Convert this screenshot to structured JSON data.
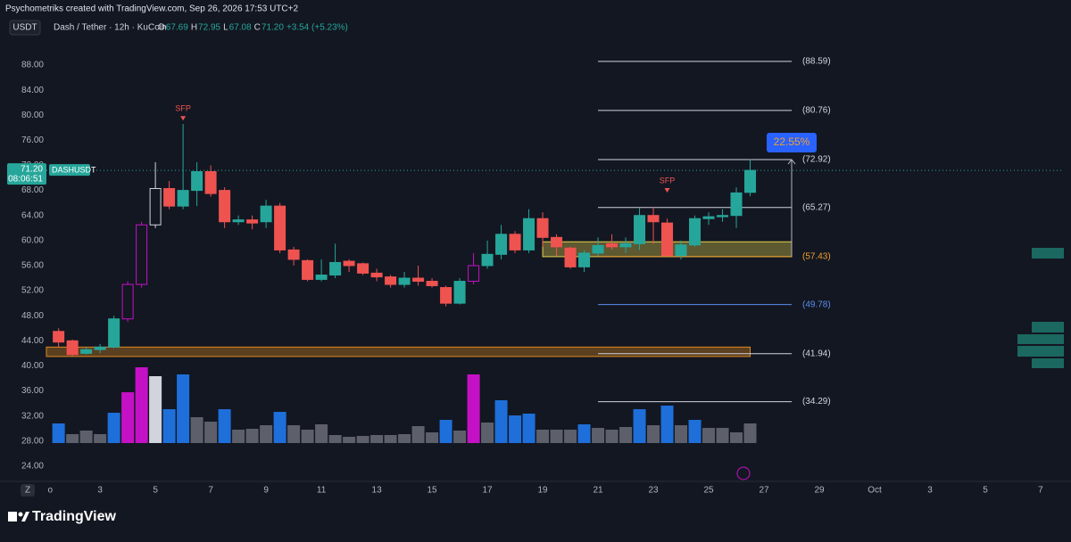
{
  "header": {
    "credit": "Psychometriks created with TradingView.com, Sep 26, 2026 17:53 UTC+2",
    "currency": "USDT",
    "symbol": "Dash / Tether · 12h · KuCoin",
    "ohlc": [
      {
        "key": "O",
        "value": "67.69"
      },
      {
        "key": "H",
        "value": "72.95"
      },
      {
        "key": "L",
        "value": "67.08"
      },
      {
        "key": "C",
        "value": "71.20"
      }
    ],
    "change": "+3.54 (+5.23%)"
  },
  "last_price": {
    "price": "71.20",
    "countdown": "08:06:51",
    "symbol": "DASHUSDT"
  },
  "footer": {
    "logo": "TradingView",
    "zoom": "Z"
  },
  "chart_data": {
    "type": "candlestick",
    "up_color": "#26a69a",
    "down_color": "#ef5350",
    "xlim": [
      1.06,
      37.84
    ],
    "ylim": [
      21.57,
      95.54
    ],
    "xticks": [
      {
        "value": 1.2,
        "label": "o"
      },
      3,
      5,
      7,
      9,
      11,
      13,
      15,
      17,
      19,
      21,
      23,
      25,
      27,
      29,
      {
        "value": 31,
        "label": "Oct"
      },
      {
        "value": 33,
        "label": "3"
      },
      {
        "value": 35,
        "label": "5"
      },
      {
        "value": 37,
        "label": "7"
      }
    ],
    "yticks": [
      {
        "value": 24,
        "label": "24.00"
      },
      {
        "value": 28,
        "label": "28.00"
      },
      {
        "value": 32,
        "label": "32.00"
      },
      {
        "value": 36,
        "label": "36.00"
      },
      {
        "value": 40,
        "label": "40.00"
      },
      {
        "value": 44,
        "label": "44.00"
      },
      {
        "value": 48,
        "label": "48.00"
      },
      {
        "value": 52,
        "label": "52.00"
      },
      {
        "value": 56,
        "label": "56.00"
      },
      {
        "value": 60,
        "label": "60.00"
      },
      {
        "value": 64,
        "label": "64.00"
      },
      {
        "value": 68,
        "label": "68.00"
      },
      {
        "value": 72,
        "label": "72.00"
      },
      {
        "value": 76,
        "label": "76.00"
      },
      {
        "value": 80,
        "label": "80.00"
      },
      {
        "value": 84,
        "label": "84.00"
      },
      {
        "value": 88,
        "label": "88.00"
      }
    ],
    "x": [
      1.5,
      2,
      2.5,
      3,
      3.5,
      4,
      4.5,
      5,
      5.5,
      6,
      6.5,
      7,
      7.5,
      8,
      8.5,
      9,
      9.5,
      10,
      10.5,
      11,
      11.5,
      12,
      12.5,
      13,
      13.5,
      14,
      14.5,
      15,
      15.5,
      16,
      16.5,
      17,
      17.5,
      18,
      18.5,
      19,
      19.5,
      20,
      20.5,
      21,
      21.5,
      22,
      22.5,
      23,
      23.5,
      24,
      24.5,
      25,
      25.5,
      26,
      26.5
    ],
    "open": [
      45.5,
      44,
      42,
      42.6,
      43,
      47.5,
      53,
      62.5,
      68.3,
      65.5,
      68,
      71,
      68,
      63,
      63.3,
      63,
      65.5,
      58.5,
      56.8,
      53.8,
      54.5,
      56.7,
      56.3,
      54.8,
      54.2,
      53,
      54,
      53.5,
      52.5,
      50,
      53.5,
      56,
      57.8,
      61,
      58.5,
      63.5,
      60.5,
      58.8,
      55.8,
      58,
      59.5,
      59,
      59.5,
      64,
      62.8,
      57.6,
      59.3,
      63.5,
      63.8,
      64,
      67.69
    ],
    "high": [
      46,
      44.2,
      43,
      43.5,
      48,
      53.5,
      63,
      72.5,
      69.5,
      78.6,
      72.5,
      72,
      68.5,
      64,
      64,
      66.5,
      66,
      59,
      57,
      57,
      59.5,
      57,
      56.5,
      55.5,
      54.5,
      55,
      56,
      54,
      52.8,
      54,
      58,
      60,
      62.5,
      61.5,
      65,
      64.5,
      61,
      59,
      58.5,
      60.5,
      61,
      60.5,
      65.2,
      65.3,
      63.5,
      60,
      64,
      64.5,
      65,
      68.5,
      72.95
    ],
    "low": [
      43,
      41.5,
      41.8,
      42,
      42.8,
      47,
      52.5,
      62,
      65,
      65,
      65.5,
      67,
      62,
      62.5,
      61.8,
      62,
      58,
      56,
      53.5,
      53.5,
      54,
      55,
      54.5,
      53.5,
      52.5,
      52.5,
      52.8,
      52.5,
      49.5,
      49.8,
      53,
      55.5,
      57,
      58,
      58,
      59,
      57.5,
      55.5,
      55,
      57.5,
      58.5,
      58,
      58.5,
      59.5,
      57.5,
      57,
      59,
      62.5,
      63,
      62,
      67.08
    ],
    "close": [
      43.8,
      41.8,
      42.6,
      43,
      47.5,
      53,
      62.5,
      68.3,
      65.5,
      68,
      71,
      67.5,
      63,
      63.3,
      62.8,
      65.5,
      58.5,
      57,
      53.8,
      54.5,
      56.5,
      56,
      54.8,
      54.2,
      53,
      54,
      53.5,
      52.8,
      50,
      53.5,
      56,
      57.8,
      61,
      58.5,
      63.5,
      60.5,
      59,
      55.8,
      58,
      59.2,
      59,
      59.5,
      64,
      63,
      57.6,
      59.3,
      63.5,
      63.8,
      64,
      67.6,
      71.2
    ],
    "volume": [
      22,
      10,
      14,
      10,
      34,
      57,
      85,
      75,
      38,
      77,
      29,
      24,
      38,
      15,
      16,
      20,
      35,
      20,
      15,
      21,
      9,
      7,
      8,
      9,
      9,
      10,
      19,
      12,
      26,
      14,
      77,
      23,
      48,
      31,
      33,
      15,
      15,
      15,
      21,
      17,
      15,
      18,
      38,
      20,
      42,
      20,
      26,
      17,
      17,
      12,
      22
    ],
    "volume_max": 100,
    "volume_colors": [
      "#1e6fd9",
      "#5d606b",
      "#5d606b",
      "#5d606b",
      "#1e6fd9",
      "#c511c5",
      "#c511c5",
      "#d1d4dc",
      "#1e6fd9",
      "#1e6fd9",
      "#5d606b",
      "#5d606b",
      "#1e6fd9",
      "#5d606b",
      "#5d606b",
      "#5d606b",
      "#1e6fd9",
      "#5d606b",
      "#5d606b",
      "#5d606b",
      "#5d606b",
      "#5d606b",
      "#5d606b",
      "#5d606b",
      "#5d606b",
      "#5d606b",
      "#5d606b",
      "#5d606b",
      "#1e6fd9",
      "#5d606b",
      "#c511c5",
      "#5d606b",
      "#1e6fd9",
      "#1e6fd9",
      "#1e6fd9",
      "#5d606b",
      "#5d606b",
      "#5d606b",
      "#1e6fd9",
      "#5d606b",
      "#5d606b",
      "#5d606b",
      "#1e6fd9",
      "#5d606b",
      "#1e6fd9",
      "#5d606b",
      "#1e6fd9",
      "#5d606b",
      "#5d606b",
      "#5d606b",
      "#5d606b"
    ],
    "levels": [
      {
        "value": 88.59,
        "label": "(88.59)",
        "color": "#d1d4dc"
      },
      {
        "value": 80.76,
        "label": "(80.76)",
        "color": "#d1d4dc"
      },
      {
        "value": 72.92,
        "label": "(72.92)",
        "color": "#d1d4dc"
      },
      {
        "value": 65.27,
        "label": "(65.27)",
        "color": "#d1d4dc"
      },
      {
        "value": 57.43,
        "label": "(57.43)",
        "color": "#f0a030"
      },
      {
        "value": 49.78,
        "label": "(49.78)",
        "color": "#5b8def"
      },
      {
        "value": 41.94,
        "label": "(41.94)",
        "color": "#d1d4dc"
      },
      {
        "value": 34.29,
        "label": "(34.29)",
        "color": "#d1d4dc"
      }
    ],
    "level_span": [
      21.0,
      28.0
    ],
    "zones": [
      {
        "x": [
          19.0,
          28.0
        ],
        "y": [
          57.43,
          59.8
        ],
        "color": "#e8d44d"
      },
      {
        "x": [
          1.06,
          26.5
        ],
        "y": [
          41.5,
          43.0
        ],
        "color": "#e08a1e"
      }
    ],
    "annotations": [
      {
        "text": "SFP",
        "x": 6.0,
        "y": 81.0
      },
      {
        "text": "SFP",
        "x": 23.5,
        "y": 69.5
      }
    ],
    "measure": "22.55%"
  }
}
